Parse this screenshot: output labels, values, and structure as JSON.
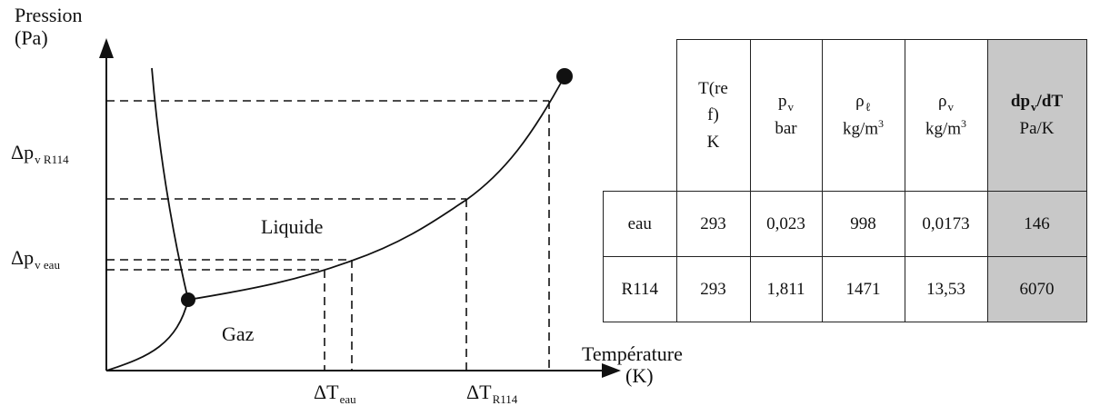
{
  "axes": {
    "y_label_line1": "Pression",
    "y_label_line2": "(Pa)",
    "x_label_line1": "Température",
    "x_label_line2": "(K)"
  },
  "annotations": {
    "dp_r114_main": "Δp",
    "dp_r114_sub": "v R114",
    "dp_eau_main": "Δp",
    "dp_eau_sub": "v eau",
    "dt_eau_main": "ΔT",
    "dt_eau_sub": "eau",
    "dt_r114_main": "ΔT",
    "dt_r114_sub": "R114",
    "region_liquid": "Liquide",
    "region_gas": "Gaz"
  },
  "table": {
    "headers": {
      "tref": [
        "T(re",
        "f)",
        "K"
      ],
      "pv_sym": "p",
      "pv_sub": "v",
      "pv_unit": "bar",
      "rhol_sym": "ρ",
      "rhol_sub": "ℓ",
      "rhol_unit": "kg/m",
      "rhol_exp": "3",
      "rhov_sym": "ρ",
      "rhov_sub": "v",
      "rhov_unit": "kg/m",
      "rhov_exp": "3",
      "dpdt_sym": "dp",
      "dpdt_sub": "v",
      "dpdt_rest": "/dT",
      "dpdt_unit": "Pa/K"
    },
    "rows": [
      {
        "fluid": "eau",
        "tref": "293",
        "pv": "0,023",
        "rhol": "998",
        "rhov": "0,0173",
        "dpdt": "146"
      },
      {
        "fluid": "R114",
        "tref": "293",
        "pv": "1,811",
        "rhol": "1471",
        "rhov": "13,53",
        "dpdt": "6070"
      }
    ],
    "highlight_color": "#c8c8c8"
  }
}
